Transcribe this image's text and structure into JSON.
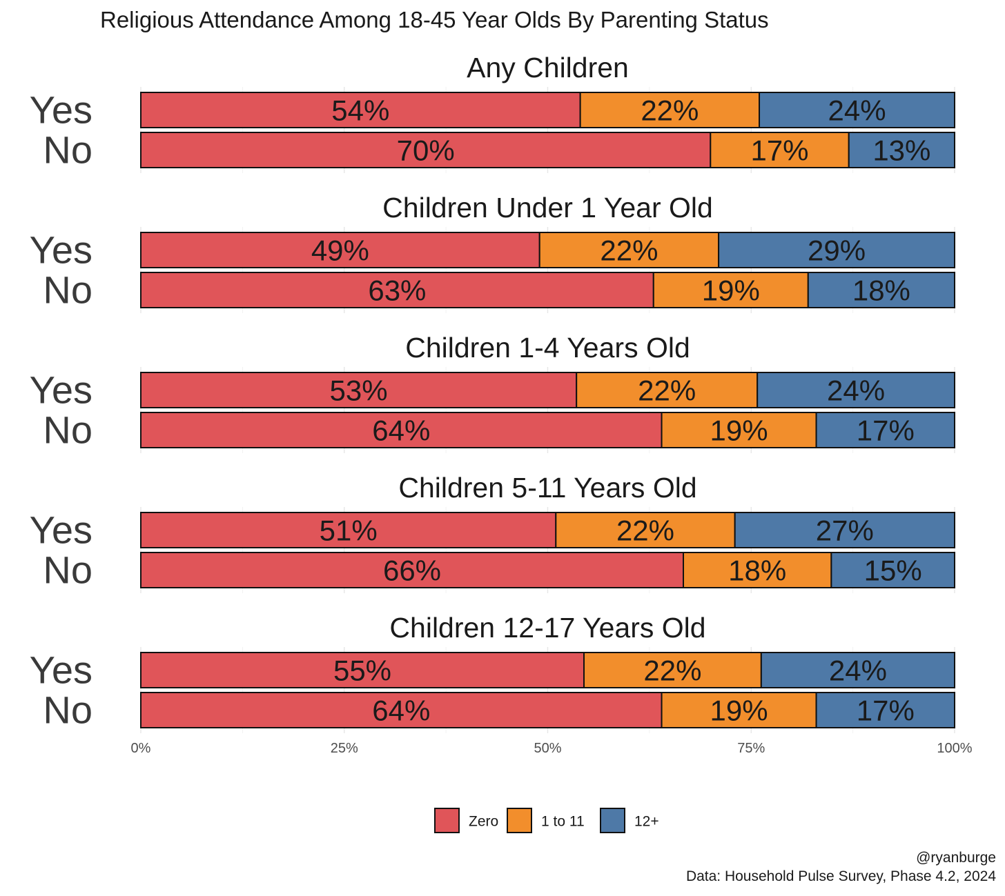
{
  "title": "Religious Attendance Among 18-45 Year Olds By Parenting Status",
  "caption": {
    "handle": "@ryanburge",
    "source": "Data: Household Pulse Survey, Phase 4.2, 2024"
  },
  "colors": {
    "Zero": "#e05559",
    "1 to 11": "#f28e2c",
    "12+": "#4e79a7"
  },
  "chart_data": {
    "type": "bar",
    "orientation": "horizontal",
    "stacked": true,
    "normalized": true,
    "title": "Religious Attendance Among 18-45 Year Olds By Parenting Status",
    "xlabel": "",
    "ylabel": "",
    "xlim": [
      0,
      100
    ],
    "x_ticks": [
      "0%",
      "25%",
      "50%",
      "75%",
      "100%"
    ],
    "legend": {
      "position": "bottom",
      "entries": [
        "Zero",
        "1 to 11",
        "12+"
      ]
    },
    "grid": true,
    "panels": [
      {
        "title": "Any Children",
        "categories": [
          "Yes",
          "No"
        ],
        "series": [
          {
            "name": "Zero",
            "values": [
              54,
              70
            ]
          },
          {
            "name": "1 to 11",
            "values": [
              22,
              17
            ]
          },
          {
            "name": "12+",
            "values": [
              24,
              13
            ]
          }
        ]
      },
      {
        "title": "Children Under 1 Year Old",
        "categories": [
          "Yes",
          "No"
        ],
        "series": [
          {
            "name": "Zero",
            "values": [
              49,
              63
            ]
          },
          {
            "name": "1 to 11",
            "values": [
              22,
              19
            ]
          },
          {
            "name": "12+",
            "values": [
              29,
              18
            ]
          }
        ]
      },
      {
        "title": "Children 1-4 Years Old",
        "categories": [
          "Yes",
          "No"
        ],
        "series": [
          {
            "name": "Zero",
            "values": [
              53,
              64
            ]
          },
          {
            "name": "1 to 11",
            "values": [
              22,
              19
            ]
          },
          {
            "name": "12+",
            "values": [
              24,
              17
            ]
          }
        ]
      },
      {
        "title": "Children 5-11 Years Old",
        "categories": [
          "Yes",
          "No"
        ],
        "series": [
          {
            "name": "Zero",
            "values": [
              51,
              66
            ]
          },
          {
            "name": "1 to 11",
            "values": [
              22,
              18
            ]
          },
          {
            "name": "12+",
            "values": [
              27,
              15
            ]
          }
        ]
      },
      {
        "title": "Children 12-17 Years Old",
        "categories": [
          "Yes",
          "No"
        ],
        "series": [
          {
            "name": "Zero",
            "values": [
              55,
              64
            ]
          },
          {
            "name": "1 to 11",
            "values": [
              22,
              19
            ]
          },
          {
            "name": "12+",
            "values": [
              24,
              17
            ]
          }
        ]
      }
    ]
  }
}
